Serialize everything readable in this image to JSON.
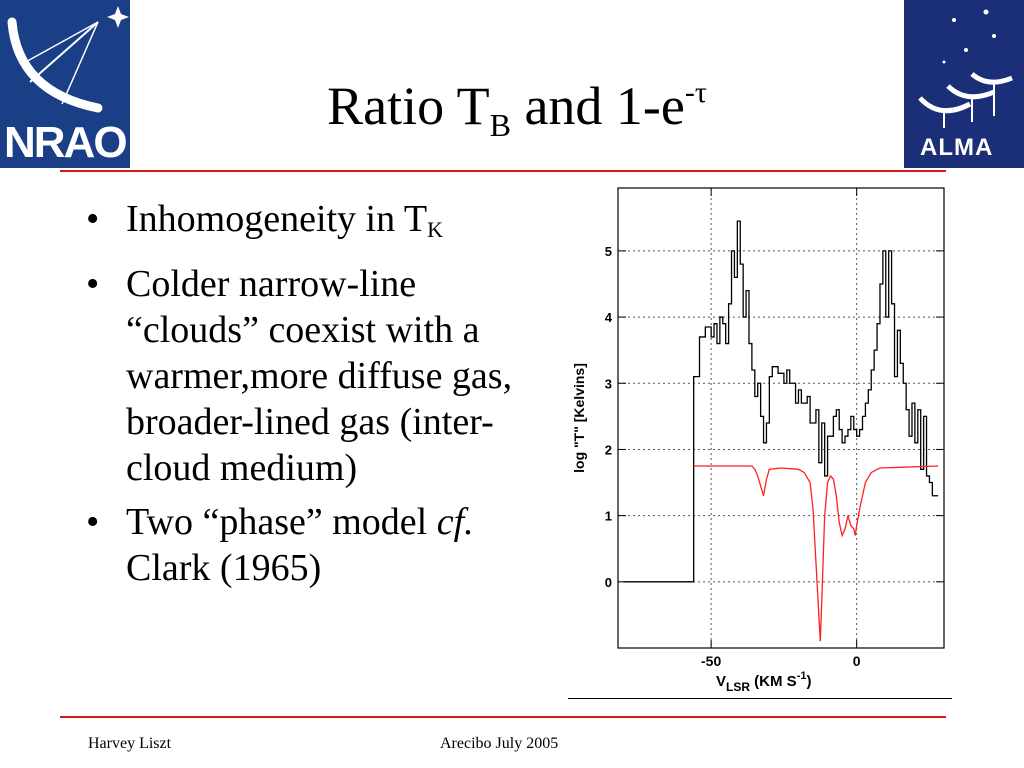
{
  "logos": {
    "left_text": "NRAO",
    "right_text": "ALMA"
  },
  "title": {
    "main": "Ratio T",
    "sub": "B",
    "rest": " and 1-e",
    "sup": "-τ"
  },
  "bullets": [
    {
      "text": "Inhomogeneity in T",
      "sub": "K"
    },
    {
      "text": "Colder narrow-line “clouds” coexist with a warmer,more diffuse gas, broader-lined gas (inter-cloud medium)"
    },
    {
      "text_before": "Two “phase” model ",
      "italic": "cf.",
      "text_after": " Clark (1965)"
    }
  ],
  "footer": {
    "left": "Harvey Liszt",
    "center": "Arecibo July 2005"
  },
  "colors": {
    "rule": "#d01818",
    "brightness_series": "#000000",
    "opacity_series": "#ff2020"
  },
  "chart_data": {
    "type": "line",
    "xlabel_main": "V",
    "xlabel_sub": "LSR",
    "xlabel_units": " (KM S",
    "xlabel_sup": "-1",
    "xlabel_close": ")",
    "ylabel": "log \"T\" [Kelvins]",
    "xlim": [
      -82,
      30
    ],
    "ylim": [
      -1,
      5.95
    ],
    "xticks": [
      -50,
      0
    ],
    "xtick_labels": [
      "-50",
      "0"
    ],
    "yticks": [
      0,
      1,
      2,
      3,
      4,
      5
    ],
    "ytick_labels": [
      "0",
      "1",
      "2",
      "3",
      "4",
      "5"
    ],
    "grid": true,
    "series": [
      {
        "style": "step",
        "color": "black",
        "points": [
          [
            -80,
            0
          ],
          [
            -56,
            0
          ],
          [
            -56,
            3.1
          ],
          [
            -54,
            3.7
          ],
          [
            -52,
            3.85
          ],
          [
            -50,
            3.7
          ],
          [
            -49,
            3.9
          ],
          [
            -48,
            3.6
          ],
          [
            -47,
            4.0
          ],
          [
            -46,
            3.9
          ],
          [
            -45,
            3.6
          ],
          [
            -44,
            4.2
          ],
          [
            -43,
            5.0
          ],
          [
            -42,
            4.6
          ],
          [
            -41,
            5.45
          ],
          [
            -40,
            4.8
          ],
          [
            -39,
            4.0
          ],
          [
            -38,
            4.4
          ],
          [
            -37,
            3.6
          ],
          [
            -36,
            3.2
          ],
          [
            -35,
            2.8
          ],
          [
            -34,
            3.0
          ],
          [
            -33,
            2.5
          ],
          [
            -32,
            2.1
          ],
          [
            -31,
            2.4
          ],
          [
            -30,
            3.1
          ],
          [
            -29,
            3.25
          ],
          [
            -27,
            3.15
          ],
          [
            -25,
            3.0
          ],
          [
            -24,
            3.2
          ],
          [
            -23,
            3.0
          ],
          [
            -21,
            2.7
          ],
          [
            -20,
            2.9
          ],
          [
            -19,
            2.7
          ],
          [
            -17,
            2.8
          ],
          [
            -16,
            2.4
          ],
          [
            -14,
            2.6
          ],
          [
            -13,
            1.8
          ],
          [
            -12,
            2.4
          ],
          [
            -11,
            1.6
          ],
          [
            -10,
            2.2
          ],
          [
            -8,
            2.5
          ],
          [
            -7,
            2.6
          ],
          [
            -6,
            2.3
          ],
          [
            -5,
            2.1
          ],
          [
            -4,
            2.2
          ],
          [
            -3,
            2.3
          ],
          [
            -2,
            2.5
          ],
          [
            -1,
            2.3
          ],
          [
            0,
            2.2
          ],
          [
            1,
            2.3
          ],
          [
            2,
            2.5
          ],
          [
            3,
            2.7
          ],
          [
            4,
            2.9
          ],
          [
            5,
            3.2
          ],
          [
            6,
            3.5
          ],
          [
            7,
            3.9
          ],
          [
            8,
            4.5
          ],
          [
            9,
            5.0
          ],
          [
            10,
            4.0
          ],
          [
            11,
            5.0
          ],
          [
            12,
            4.2
          ],
          [
            13,
            3.1
          ],
          [
            14,
            3.8
          ],
          [
            15,
            3.3
          ],
          [
            16,
            3.0
          ],
          [
            17,
            2.6
          ],
          [
            18,
            2.2
          ],
          [
            19,
            2.7
          ],
          [
            20,
            2.1
          ],
          [
            21,
            2.6
          ],
          [
            22,
            1.7
          ],
          [
            23,
            2.5
          ],
          [
            24,
            1.6
          ],
          [
            25,
            1.5
          ],
          [
            26,
            1.3
          ],
          [
            28,
            1.3
          ]
        ]
      },
      {
        "style": "line",
        "color": "red",
        "points": [
          [
            -56,
            1.75
          ],
          [
            -36,
            1.75
          ],
          [
            -35,
            1.7
          ],
          [
            -34,
            1.6
          ],
          [
            -33,
            1.45
          ],
          [
            -32,
            1.3
          ],
          [
            -31,
            1.55
          ],
          [
            -30,
            1.7
          ],
          [
            -26,
            1.72
          ],
          [
            -20,
            1.7
          ],
          [
            -18,
            1.65
          ],
          [
            -16,
            1.5
          ],
          [
            -15,
            1.1
          ],
          [
            -14,
            0.3
          ],
          [
            -13,
            -0.5
          ],
          [
            -12.5,
            -0.9
          ],
          [
            -12,
            -0.3
          ],
          [
            -11,
            1.0
          ],
          [
            -10,
            1.5
          ],
          [
            -9,
            1.6
          ],
          [
            -8,
            1.55
          ],
          [
            -7,
            1.3
          ],
          [
            -6,
            0.9
          ],
          [
            -5,
            0.7
          ],
          [
            -4,
            0.8
          ],
          [
            -3,
            1.0
          ],
          [
            -2,
            0.85
          ],
          [
            -1,
            0.8
          ],
          [
            -0.5,
            0.7
          ],
          [
            0,
            0.85
          ],
          [
            1,
            1.1
          ],
          [
            2,
            1.3
          ],
          [
            3,
            1.5
          ],
          [
            5,
            1.65
          ],
          [
            8,
            1.72
          ],
          [
            28,
            1.75
          ]
        ]
      }
    ]
  }
}
